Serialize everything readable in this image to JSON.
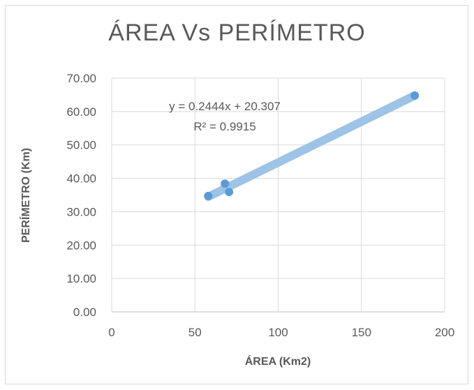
{
  "chart_data": {
    "type": "scatter",
    "title": "ÁREA Vs PERÍMETRO",
    "xlabel": "ÁREA (Km2)",
    "ylabel": "PERÍMETRO (Km)",
    "xlim": [
      0,
      200
    ],
    "ylim": [
      0,
      70
    ],
    "x_ticks": [
      0,
      50,
      100,
      150,
      200
    ],
    "x_tick_labels": [
      "0",
      "50",
      "100",
      "150",
      "200"
    ],
    "y_ticks": [
      0,
      10,
      20,
      30,
      40,
      50,
      60,
      70
    ],
    "y_tick_labels": [
      "0.00",
      "10.00",
      "20.00",
      "30.00",
      "40.00",
      "50.00",
      "60.00",
      "70.00"
    ],
    "grid": true,
    "legend": "none",
    "series": [
      {
        "points": [
          {
            "x": 58,
            "y": 34.7
          },
          {
            "x": 68,
            "y": 38.4
          },
          {
            "x": 70.5,
            "y": 35.9
          },
          {
            "x": 182,
            "y": 64.8
          }
        ],
        "color": "#5b9bd5"
      }
    ],
    "trendline": {
      "type": "linear",
      "slope": 0.2444,
      "intercept": 20.307,
      "x_range": [
        58,
        182
      ],
      "color": "#9dc3e6",
      "equation": "y = 0.2444x + 20.307",
      "r_squared": "R² = 0.9915"
    }
  }
}
